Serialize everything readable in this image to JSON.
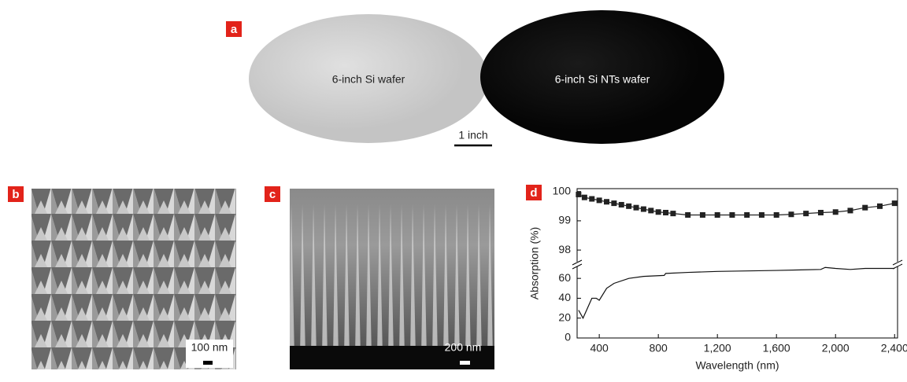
{
  "panels": {
    "a": {
      "label": "a",
      "left_text": "6-inch Si wafer",
      "right_text": "6-inch Si NTs wafer",
      "scale_bar": "1 inch"
    },
    "b": {
      "label": "b",
      "scale_bar": "100 nm"
    },
    "c": {
      "label": "c",
      "scale_bar": "200 nm"
    },
    "d": {
      "label": "d"
    }
  },
  "chart_data": [
    {
      "type": "line",
      "ylabel": "Absorption (%)",
      "xlim": [
        250,
        2420
      ],
      "ylim": [
        97.6,
        100.1
      ],
      "yticks": [
        98,
        99,
        100
      ],
      "x": [
        260,
        300,
        350,
        400,
        450,
        500,
        550,
        600,
        650,
        700,
        750,
        800,
        850,
        900,
        1000,
        1100,
        1200,
        1300,
        1400,
        1500,
        1600,
        1700,
        1800,
        1900,
        2000,
        2100,
        2200,
        2300,
        2400
      ],
      "series": [
        {
          "color": "#222222",
          "marker": "square",
          "values": [
            99.9,
            99.8,
            99.75,
            99.7,
            99.65,
            99.6,
            99.55,
            99.5,
            99.45,
            99.4,
            99.35,
            99.3,
            99.28,
            99.25,
            99.2,
            99.2,
            99.2,
            99.2,
            99.2,
            99.2,
            99.2,
            99.22,
            99.25,
            99.28,
            99.3,
            99.35,
            99.45,
            99.5,
            99.6
          ]
        }
      ]
    },
    {
      "type": "line",
      "xlabel": "Wavelength (nm)",
      "xlim": [
        250,
        2420
      ],
      "ylim": [
        0,
        72
      ],
      "yticks": [
        0,
        20,
        40,
        60
      ],
      "xticks": [
        400,
        800,
        {
          "value": 1200,
          "label": "1,200"
        },
        {
          "value": 1600,
          "label": "1,600"
        },
        {
          "value": 2000,
          "label": "2,000"
        },
        {
          "value": 2400,
          "label": "2,400"
        }
      ],
      "x": [
        260,
        290,
        320,
        350,
        380,
        400,
        450,
        500,
        600,
        700,
        840,
        850,
        1000,
        1200,
        1600,
        1900,
        1930,
        2000,
        2100,
        2200,
        2400
      ],
      "series": [
        {
          "color": "#111111",
          "values": [
            28,
            20,
            30,
            40,
            40,
            38,
            50,
            55,
            60,
            62,
            63,
            65,
            66,
            67,
            68,
            69,
            71,
            70,
            69,
            70,
            70
          ]
        }
      ]
    }
  ]
}
